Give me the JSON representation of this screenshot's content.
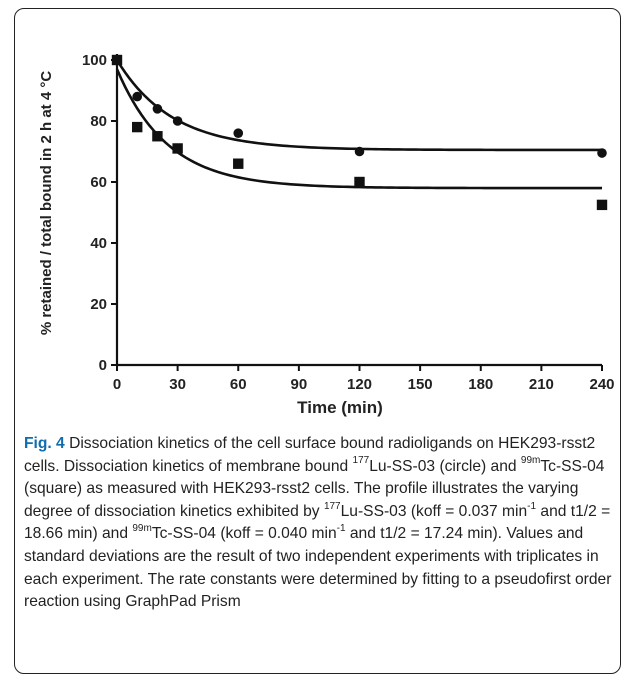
{
  "chart_data": {
    "type": "scatter",
    "title": "",
    "xlabel": "Time (min)",
    "ylabel": "% retained / total bound in 2 h at 4 °C",
    "xlim": [
      0,
      240
    ],
    "ylim": [
      0,
      100
    ],
    "xticks": [
      0,
      30,
      60,
      90,
      120,
      150,
      180,
      210,
      240
    ],
    "yticks": [
      0,
      20,
      40,
      60,
      80,
      100
    ],
    "grid": false,
    "series": [
      {
        "marker": "circle",
        "x": [
          0,
          10,
          20,
          30,
          60,
          120,
          240
        ],
        "y": [
          100,
          88,
          84,
          80,
          76,
          70,
          69.5
        ],
        "fit": {
          "model": "one-phase exponential decay",
          "y0": 100,
          "plateau": 70.5,
          "k": 0.037
        }
      },
      {
        "marker": "square",
        "x": [
          0,
          10,
          20,
          30,
          60,
          120,
          240
        ],
        "y": [
          100,
          78,
          75,
          71,
          66,
          60,
          52.5
        ],
        "fit": {
          "model": "one-phase exponential decay",
          "y0": 97,
          "plateau": 58,
          "k": 0.04
        }
      }
    ]
  },
  "caption": {
    "label": "Fig. 4",
    "title": "Dissociation kinetics of the cell surface bound radioligands on HEK293-rsst2 cells.",
    "p1": "Dissociation kinetics of membrane bound",
    "sup_lu": "177",
    "lu_name": "Lu-SS-03",
    "p2": "(circle) and",
    "sup_tc": "99m",
    "tc_name": "Tc-SS-04",
    "p3": "(square) as measured with HEK293-rsst2 cells. The profile illustrates the varying degree of dissociation kinetics exhibited by",
    "p4": "(koff = 0.037 min",
    "sup_m1": "-1",
    "p5": "and t1/2 = 18.66 min) and",
    "p6": "(koff = 0.040 min",
    "p7": "and t1/2 = 17.24 min). Values and standard deviations are the result of two independent experiments with triplicates in each experiment. The rate constants were determined by fitting to a pseudofirst order reaction using GraphPad Prism"
  }
}
